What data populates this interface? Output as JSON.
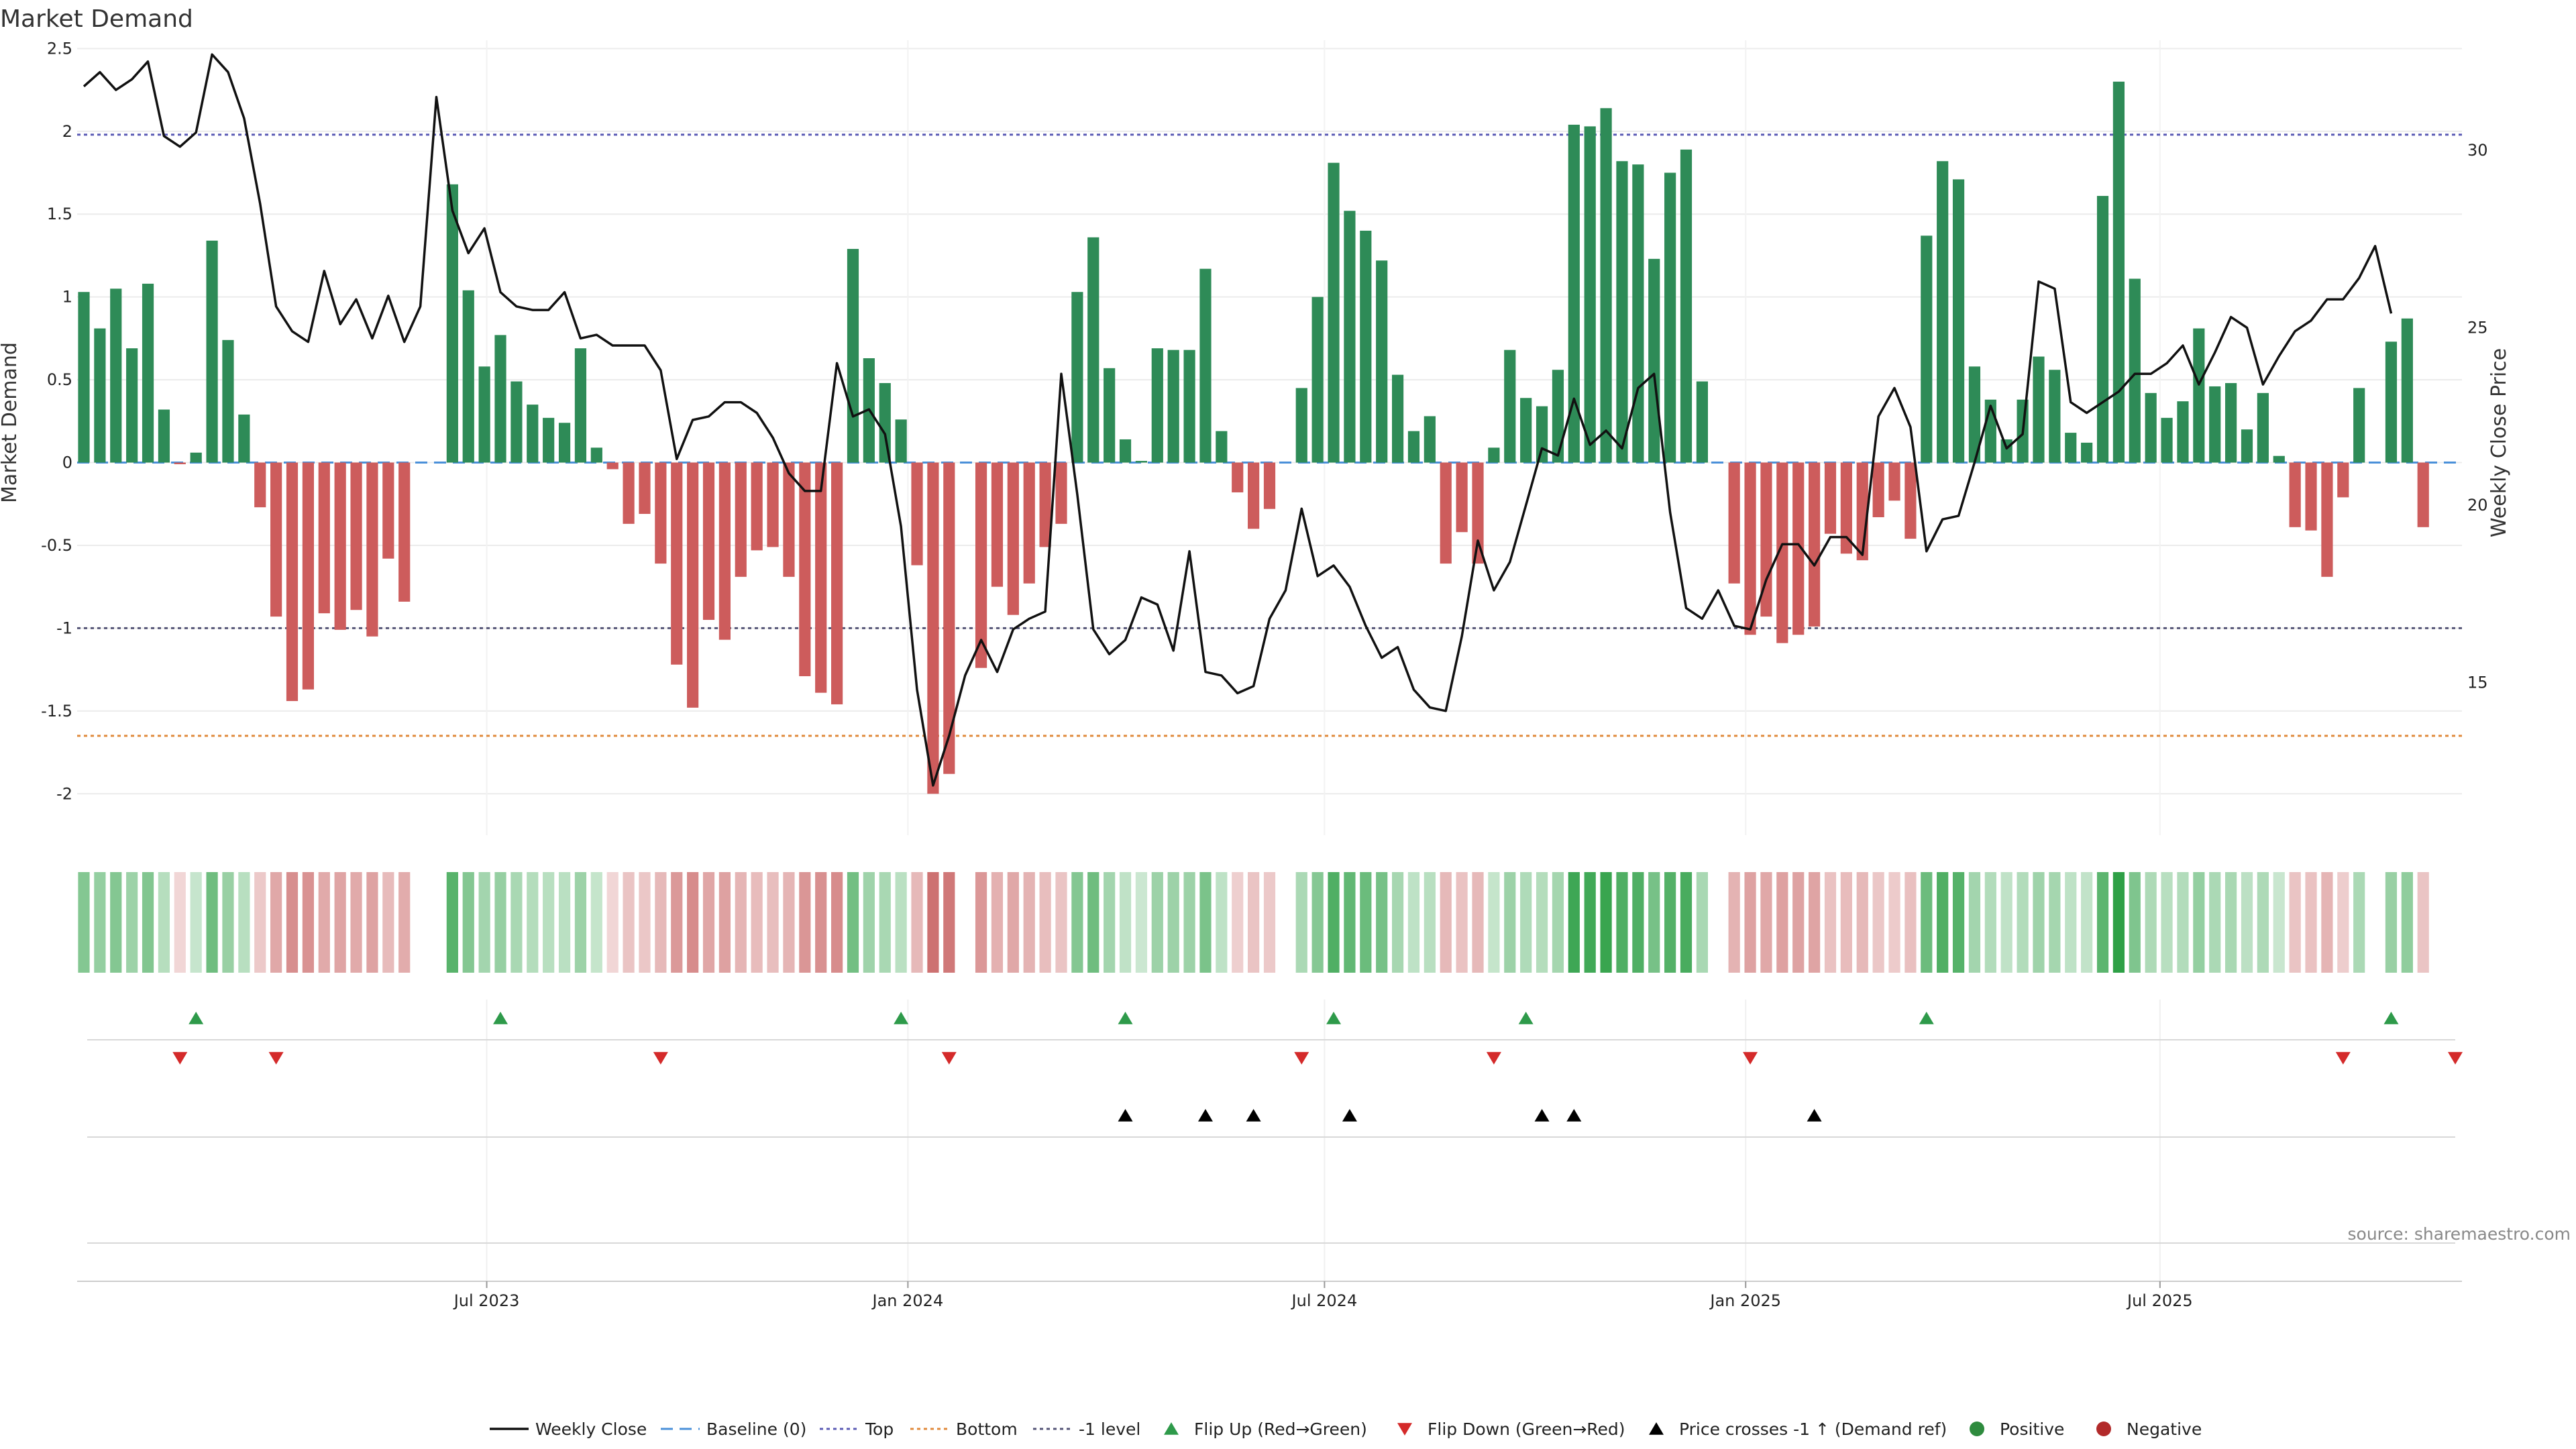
{
  "chart_data": {
    "type": "bar",
    "title": "Market Demand",
    "ylabel": "Market Demand",
    "y2label": "Weekly Close Price",
    "ylim": [
      -2.25,
      2.55
    ],
    "y2lim": [
      10.7,
      33.1
    ],
    "yticks": [
      2.5,
      2,
      1.5,
      1,
      0.5,
      0,
      -0.5,
      -1,
      -1.5,
      -2
    ],
    "y2ticks": [
      30,
      25,
      20,
      15
    ],
    "reference_lines": {
      "baseline": 0,
      "top": 1.98,
      "bottom": -1.65,
      "minus_one_level": -1
    },
    "xlim": [
      "2023-01-06",
      "2025-11-07"
    ],
    "x_ticks": [
      {
        "date": "2023-07-01",
        "label": "Jul 2023"
      },
      {
        "date": "2024-01-01",
        "label": "Jan 2024"
      },
      {
        "date": "2024-07-01",
        "label": "Jul 2024"
      },
      {
        "date": "2025-01-01",
        "label": "Jan 2025"
      },
      {
        "date": "2025-07-01",
        "label": "Jul 2025"
      }
    ],
    "series": [
      {
        "name": "Market Demand",
        "start": "2023-01-06",
        "frequency": "weekly",
        "values": [
          1.03,
          0.81,
          1.05,
          0.69,
          1.08,
          0.32,
          -0.01,
          0.06,
          1.34,
          0.74,
          0.29,
          -0.27,
          -0.93,
          -1.44,
          -1.37,
          -0.91,
          -1.01,
          -0.89,
          -1.05,
          -0.58,
          -0.84,
          0.0,
          0.0,
          1.68,
          1.04,
          0.58,
          0.77,
          0.49,
          0.35,
          0.27,
          0.24,
          0.69,
          0.09,
          -0.04,
          -0.37,
          -0.31,
          -0.61,
          -1.22,
          -1.48,
          -0.95,
          -1.07,
          -0.69,
          -0.53,
          -0.51,
          -0.69,
          -1.29,
          -1.39,
          -1.46,
          1.29,
          0.63,
          0.48,
          0.26,
          -0.62,
          -2.0,
          -1.88,
          0.0,
          -1.24,
          -0.75,
          -0.92,
          -0.73,
          -0.51,
          -0.37,
          1.03,
          1.36,
          0.57,
          0.14,
          0.01,
          0.69,
          0.68,
          0.68,
          1.17,
          0.19,
          -0.18,
          -0.4,
          -0.28,
          0.0,
          0.45,
          1.0,
          1.81,
          1.52,
          1.4,
          1.22,
          0.53,
          0.19,
          0.28,
          -0.61,
          -0.42,
          -0.61,
          0.09,
          0.68,
          0.39,
          0.34,
          0.56,
          2.04,
          2.03,
          2.14,
          1.82,
          1.8,
          1.23,
          1.75,
          1.89,
          0.49,
          0.0,
          -0.73,
          -1.04,
          -0.93,
          -1.09,
          -1.04,
          -0.99,
          -0.43,
          -0.55,
          -0.59,
          -0.33,
          -0.23,
          -0.46,
          1.37,
          1.82,
          1.71,
          0.58,
          0.38,
          0.14,
          0.38,
          0.64,
          0.56,
          0.18,
          0.12,
          1.61,
          2.3,
          1.11,
          0.42,
          0.27,
          0.37,
          0.81,
          0.46,
          0.48,
          0.2,
          0.42,
          0.04,
          -0.39,
          -0.41,
          -0.69,
          -0.21,
          0.45,
          0.0,
          0.73,
          0.87,
          -0.39
        ]
      },
      {
        "name": "Weekly Close",
        "start": "2023-01-06",
        "frequency": "weekly",
        "values": [
          31.8,
          32.2,
          31.7,
          32.0,
          32.5,
          30.4,
          30.1,
          30.5,
          32.7,
          32.2,
          30.9,
          28.5,
          25.6,
          24.9,
          24.6,
          26.6,
          25.1,
          25.8,
          24.7,
          25.9,
          24.6,
          25.6,
          31.5,
          28.3,
          27.1,
          27.8,
          26.0,
          25.6,
          25.5,
          25.5,
          26.0,
          24.7,
          24.8,
          24.5,
          24.5,
          24.5,
          23.8,
          21.3,
          22.4,
          22.5,
          22.9,
          22.9,
          22.6,
          21.9,
          20.9,
          20.4,
          20.4,
          24.0,
          22.5,
          22.7,
          22.0,
          19.4,
          14.8,
          12.1,
          13.5,
          15.2,
          16.2,
          15.3,
          16.5,
          16.8,
          17.0,
          23.7,
          20.3,
          16.5,
          15.8,
          16.2,
          17.4,
          17.2,
          15.9,
          18.7,
          15.3,
          15.2,
          14.7,
          14.9,
          16.8,
          17.6,
          19.9,
          18.0,
          18.3,
          17.7,
          16.6,
          15.7,
          16.0,
          14.8,
          14.3,
          14.2,
          16.3,
          19.0,
          17.6,
          18.4,
          20.0,
          21.6,
          21.4,
          23.0,
          21.7,
          22.1,
          21.6,
          23.3,
          23.7,
          19.8,
          17.1,
          16.8,
          17.6,
          16.6,
          16.5,
          17.9,
          18.9,
          18.9,
          18.3,
          19.1,
          19.1,
          18.6,
          22.5,
          23.3,
          22.2,
          18.7,
          19.6,
          19.7,
          21.2,
          22.8,
          21.6,
          22.0,
          26.3,
          26.1,
          22.9,
          22.6,
          22.9,
          23.2,
          23.7,
          23.7,
          24.0,
          24.5,
          23.4,
          24.3,
          25.3,
          25.0,
          23.4,
          24.2,
          24.9,
          25.2,
          25.8,
          25.8,
          26.4,
          27.3,
          25.4
        ]
      }
    ],
    "flip_up_dates": [
      "2023-02-24",
      "2023-07-07",
      "2023-12-29",
      "2024-04-05",
      "2024-07-05",
      "2024-09-27",
      "2025-03-21",
      "2025-10-10"
    ],
    "flip_down_dates": [
      "2023-02-17",
      "2023-03-31",
      "2023-09-15",
      "2024-01-19",
      "2024-06-21",
      "2024-09-13",
      "2025-01-03",
      "2025-09-19",
      "2025-11-07"
    ],
    "price_cross_dates": [
      "2024-04-05",
      "2024-05-10",
      "2024-05-31",
      "2024-07-12",
      "2024-10-04",
      "2024-10-18",
      "2025-01-31"
    ]
  },
  "legend": {
    "items": [
      "Weekly Close",
      "Baseline (0)",
      "Top",
      "Bottom",
      "-1 level",
      "Flip Up (Red→Green)",
      "Flip Down (Green→Red)",
      "Price crosses -1 ↑ (Demand ref)",
      "Positive",
      "Negative"
    ]
  },
  "colors": {
    "positive": "#2e8b57",
    "negative": "#cd5c5c",
    "price_line": "#111111",
    "baseline": "#4a90d9",
    "top": "#5b5bb5",
    "bottom": "#e08a3c",
    "minus_one": "#555577",
    "flip_up": "#2e9a4a",
    "flip_down": "#d42a2a",
    "cross": "#000000"
  },
  "source": "source: sharemaestro.com"
}
